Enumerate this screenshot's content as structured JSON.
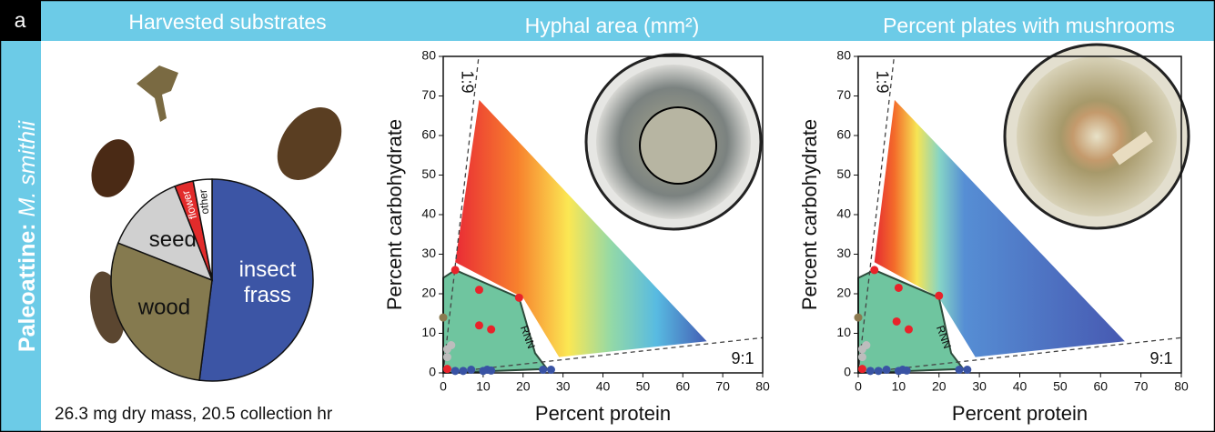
{
  "panel_label": "a",
  "side_label": {
    "prefix": "Paleoattine:",
    "species": "M. smithii"
  },
  "chart_data": [
    {
      "type": "pie",
      "title": "Harvested substrates",
      "categories": [
        "insect frass",
        "wood",
        "seed",
        "flower",
        "other"
      ],
      "values": [
        52,
        29,
        13,
        3,
        3
      ],
      "colors": [
        "#3c55a5",
        "#857a4f",
        "#d0d0d0",
        "#e22b2b",
        "#ffffff"
      ],
      "caption": "26.3 mg dry mass, 20.5 collection hr"
    },
    {
      "type": "scatter",
      "title": "Hyphal area (mm²)",
      "x_label": "Percent protein",
      "y_label": "Percent carbohydrate",
      "xlim": [
        0,
        80
      ],
      "ylim": [
        0,
        80
      ],
      "xticks": [
        0,
        10,
        20,
        30,
        40,
        50,
        60,
        70,
        80
      ],
      "yticks": [
        0,
        10,
        20,
        30,
        40,
        50,
        60,
        70,
        80
      ],
      "annotations": [
        "1:9",
        "9:1",
        "RNN"
      ],
      "region": {
        "x": [
          9,
          66,
          29,
          20,
          3
        ],
        "y": [
          69,
          8,
          4,
          19,
          28
        ]
      },
      "rnn_region": {
        "x": [
          0,
          3,
          19,
          23,
          26,
          0
        ],
        "y": [
          24,
          26,
          19,
          5,
          1,
          0
        ]
      },
      "series": [
        {
          "color": "#e8232a",
          "x": [
            3,
            9,
            19,
            9,
            12,
            1
          ],
          "y": [
            26,
            21,
            19,
            12,
            11,
            1
          ]
        },
        {
          "color": "#3953a4",
          "x": [
            3,
            5,
            7,
            10,
            11,
            12,
            25,
            27
          ],
          "y": [
            0.5,
            0.5,
            0.8,
            0.5,
            0.8,
            0.6,
            0.8,
            0.8
          ]
        },
        {
          "color": "#bdbdbd",
          "x": [
            1,
            1,
            2
          ],
          "y": [
            4,
            6,
            7
          ]
        },
        {
          "color": "#8b7a50",
          "x": [
            0
          ],
          "y": [
            14
          ]
        }
      ]
    },
    {
      "type": "scatter",
      "title": "Percent plates with mushrooms",
      "x_label": "Percent protein",
      "y_label": "Percent carbohydrate",
      "xlim": [
        0,
        80
      ],
      "ylim": [
        0,
        80
      ],
      "xticks": [
        0,
        10,
        20,
        30,
        40,
        50,
        60,
        70,
        80
      ],
      "yticks": [
        0,
        10,
        20,
        30,
        40,
        50,
        60,
        70,
        80
      ],
      "annotations": [
        "1:9",
        "9:1",
        "RNN"
      ],
      "region": {
        "x": [
          9,
          66,
          29,
          20,
          4
        ],
        "y": [
          69,
          8,
          4,
          19,
          28
        ]
      },
      "rnn_region": {
        "x": [
          0,
          4,
          20,
          23,
          26,
          0
        ],
        "y": [
          24,
          26,
          19,
          5,
          1,
          0
        ]
      },
      "series": [
        {
          "color": "#e8232a",
          "x": [
            4,
            10,
            20,
            9.5,
            12.5,
            1
          ],
          "y": [
            26,
            21.5,
            19.5,
            13,
            11,
            1
          ]
        },
        {
          "color": "#3953a4",
          "x": [
            3,
            5,
            7,
            10,
            11,
            12,
            25,
            27
          ],
          "y": [
            0.5,
            0.5,
            0.8,
            0.5,
            0.8,
            0.6,
            0.8,
            0.8
          ]
        },
        {
          "color": "#bdbdbd",
          "x": [
            1,
            1,
            2
          ],
          "y": [
            4,
            6,
            7
          ]
        },
        {
          "color": "#8b7a50",
          "x": [
            0
          ],
          "y": [
            14
          ]
        }
      ]
    }
  ]
}
